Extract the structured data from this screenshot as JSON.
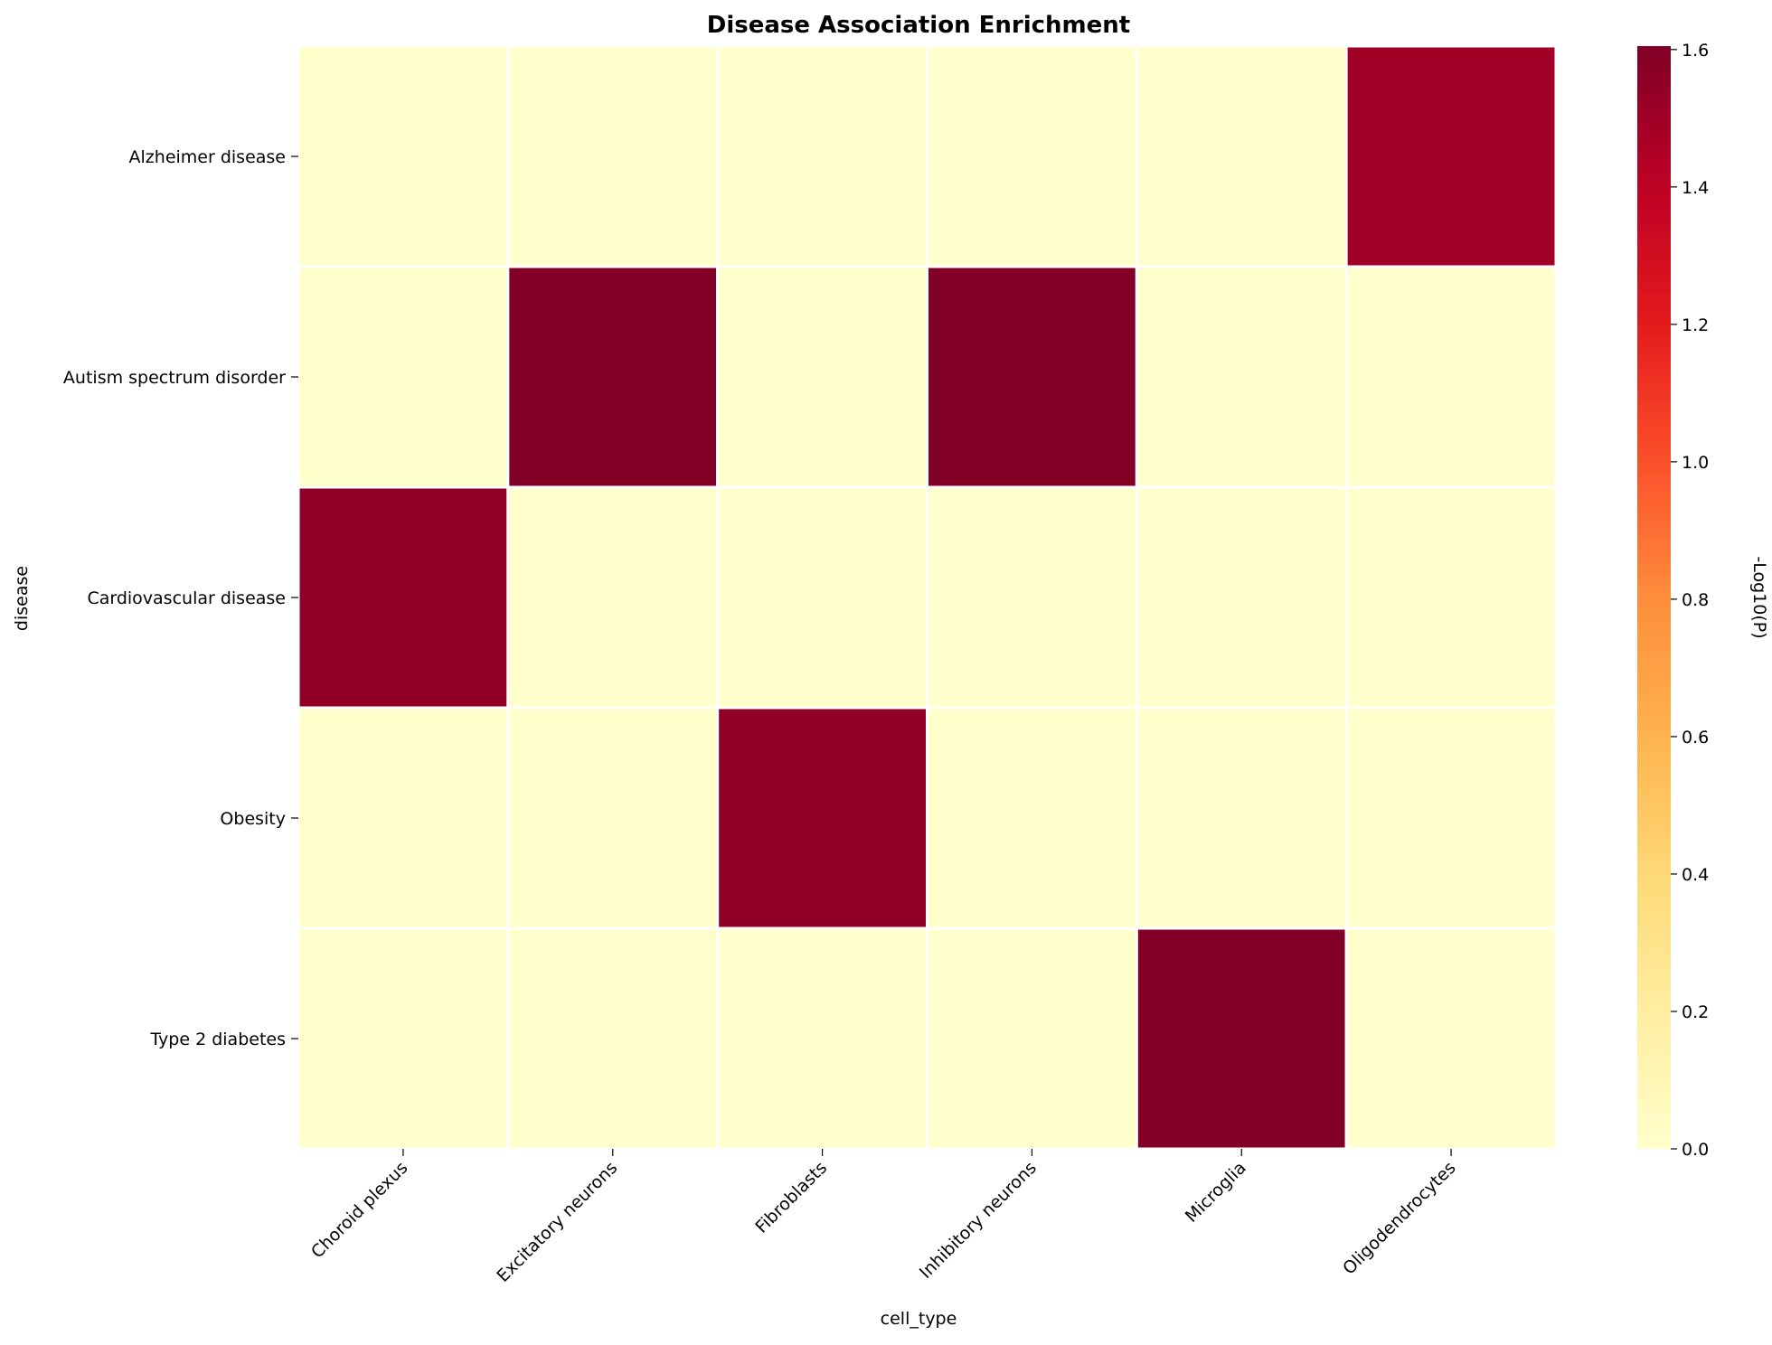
{
  "chart_data": {
    "type": "heatmap",
    "title": "Disease Association Enrichment",
    "xlabel": "cell_type",
    "ylabel": "disease",
    "colorbar_label": "-Log10(P)",
    "colormap": "YlOrRd",
    "x_categories": [
      "Choroid plexus",
      "Excitatory neurons",
      "Fibroblasts",
      "Inhibitory neurons",
      "Microglia",
      "Oligodendrocytes"
    ],
    "y_categories": [
      "Alzheimer disease",
      "Autism spectrum disorder",
      "Cardiovascular disease",
      "Obesity",
      "Type 2 diabetes"
    ],
    "values": [
      [
        0.0,
        0.0,
        0.0,
        0.0,
        0.0,
        1.5
      ],
      [
        0.0,
        1.6,
        0.0,
        1.6,
        0.0,
        0.0
      ],
      [
        1.55,
        0.0,
        0.0,
        0.0,
        0.0,
        0.0
      ],
      [
        0.0,
        0.0,
        1.55,
        0.0,
        0.0,
        0.0
      ],
      [
        0.0,
        0.0,
        0.0,
        0.0,
        1.6,
        0.0
      ]
    ],
    "vmin": 0.0,
    "vmax": 1.605,
    "colorbar_ticks": [
      "0.0",
      "0.2",
      "0.4",
      "0.6",
      "0.8",
      "1.0",
      "1.2",
      "1.4",
      "1.6"
    ],
    "cell_border_color": "#ffffff"
  }
}
